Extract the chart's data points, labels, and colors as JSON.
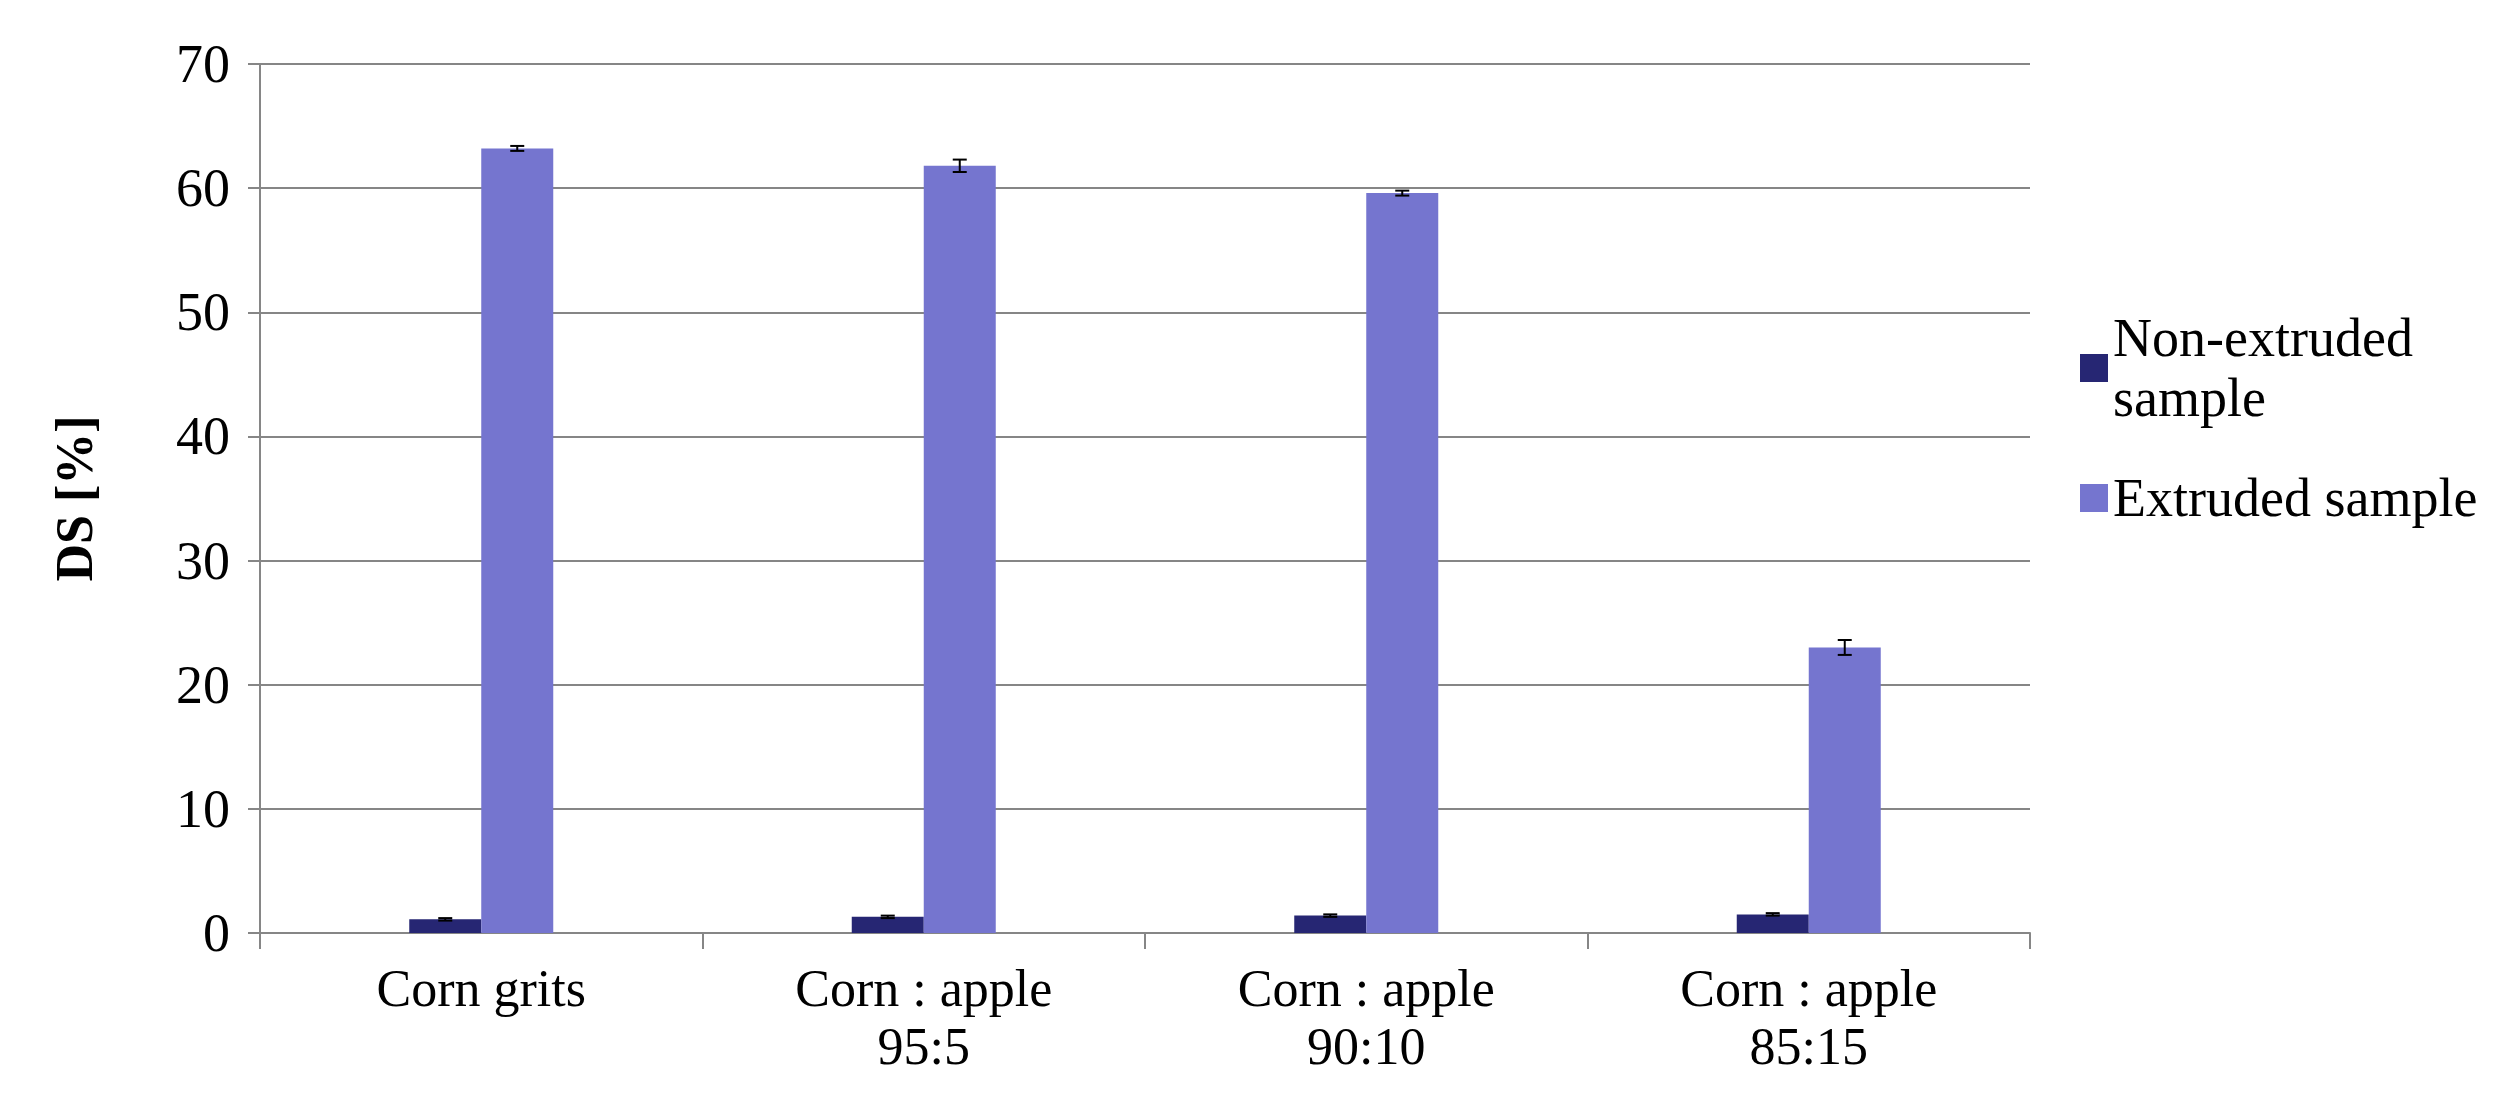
{
  "chart_data": {
    "type": "bar",
    "ylabel": "DS [%]",
    "categories": [
      "Corn grits",
      "Corn : apple\n95:5",
      "Corn : apple\n90:10",
      "Corn : apple\n85:15"
    ],
    "series": [
      {
        "name": "Non-extruded sample",
        "color": "#262673",
        "values": [
          1.1,
          1.3,
          1.4,
          1.5
        ],
        "errors": [
          0.1,
          0.1,
          0.1,
          0.1
        ]
      },
      {
        "name": "Extruded sample",
        "color": "#7575cf",
        "values": [
          63.2,
          61.8,
          59.6,
          23.0
        ],
        "errors": [
          0.2,
          0.5,
          0.2,
          0.6
        ]
      }
    ],
    "ylim": [
      0,
      70
    ],
    "yticks": [
      0,
      10,
      20,
      30,
      40,
      50,
      60,
      70
    ],
    "grid": "y",
    "legend": "right"
  }
}
